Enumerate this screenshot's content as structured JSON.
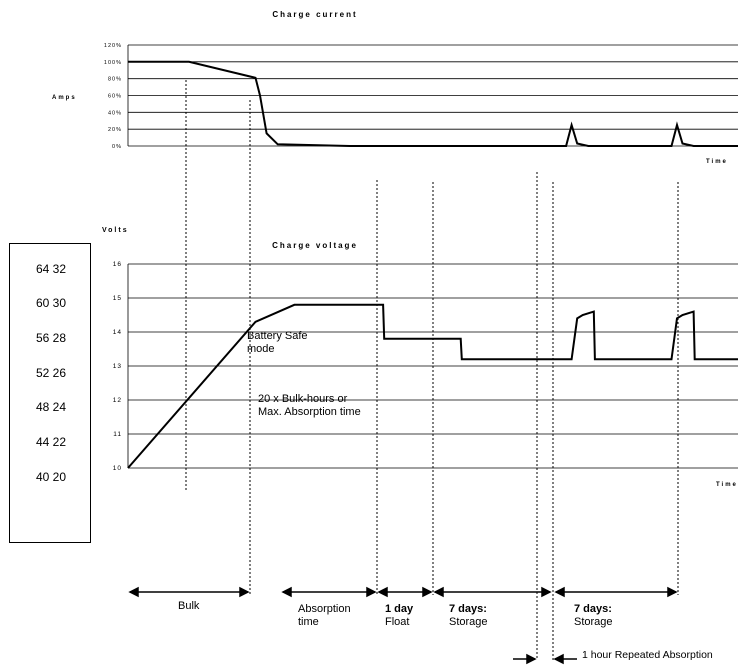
{
  "current_chart": {
    "title": "Charge current",
    "ylabel": "Amps",
    "xlabel": "Time",
    "yticks": [
      "120%",
      "100%",
      "80%",
      "60%",
      "40%",
      "20%",
      "0%"
    ]
  },
  "voltage_chart": {
    "title": "Charge voltage",
    "ylabel": "Volts",
    "xlabel": "Time",
    "yticks": [
      "16",
      "15",
      "14",
      "13",
      "12",
      "11",
      "10"
    ]
  },
  "volt_scale_box": {
    "rows": [
      "64 32",
      "60 30",
      "56 28",
      "52 26",
      "48 24",
      "44 22",
      "40 20"
    ]
  },
  "annotations": {
    "battery_safe_line1": "Battery Safe",
    "battery_safe_line2": "mode",
    "bulk_hours_line1": "20 x Bulk-hours or",
    "bulk_hours_line2": "Max. Absorption time"
  },
  "phases": {
    "bulk": "Bulk",
    "absorption_line1": "Absorption",
    "absorption_line2": "time",
    "float_line1": "1 day",
    "float_line2": "Float",
    "storage1_line1": "7 days:",
    "storage1_line2": "Storage",
    "storage2_line1": "7 days:",
    "storage2_line2": "Storage",
    "repeated_absorption": "1 hour Repeated Absorption"
  },
  "chart_data": [
    {
      "type": "line",
      "title": "Charge current",
      "ylabel": "Amps",
      "xlabel": "Time",
      "ylim": [
        0,
        120
      ],
      "y_unit": "%",
      "series": [
        {
          "values_description_free": true,
          "x": [
            0,
            11,
            23,
            23.8,
            25,
            27,
            40,
            79,
            80,
            81,
            83,
            90,
            98,
            99,
            100,
            102,
            110
          ],
          "y": [
            100,
            100,
            81,
            60,
            15,
            2,
            0,
            0,
            25,
            3,
            0,
            0,
            0,
            25,
            3,
            0,
            0
          ]
        }
      ]
    },
    {
      "type": "line",
      "title": "Charge voltage",
      "ylabel": "Volts",
      "xlabel": "Time",
      "ylim": [
        10,
        16
      ],
      "series": [
        {
          "x": [
            0,
            23,
            30,
            46,
            46.2,
            60,
            60.2,
            80,
            81,
            82,
            84,
            84.2,
            98,
            99,
            100,
            102,
            102.2,
            110
          ],
          "y": [
            10,
            14.3,
            14.8,
            14.8,
            13.8,
            13.8,
            13.2,
            13.2,
            14.4,
            14.5,
            14.6,
            13.2,
            13.2,
            14.4,
            14.5,
            14.6,
            13.2,
            13.2
          ]
        }
      ]
    }
  ]
}
